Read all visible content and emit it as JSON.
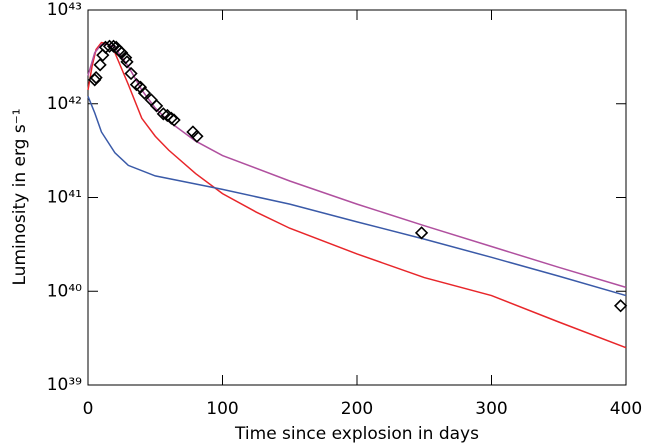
{
  "chart_data": {
    "type": "line",
    "xlabel": "Time since explosion in days",
    "ylabel": "Luminosity in erg s⁻¹",
    "xlim": [
      0,
      400
    ],
    "xticks": [
      0,
      100,
      200,
      300,
      400
    ],
    "ylim": [
      1e+39,
      1e+43
    ],
    "ylog": true,
    "yticks": [
      {
        "value": 1e+39,
        "label": "10³⁹"
      },
      {
        "value": 1e+40,
        "label": "10⁴⁰"
      },
      {
        "value": 1e+41,
        "label": "10⁴¹"
      },
      {
        "value": 1e+42,
        "label": "10⁴²"
      },
      {
        "value": 1e+43,
        "label": "10⁴³"
      }
    ],
    "series": [
      {
        "color": "#e8262a",
        "marker": "none",
        "x": [
          0,
          3,
          6,
          10,
          14,
          20,
          30,
          40,
          50,
          60,
          80,
          100,
          125,
          150,
          200,
          250,
          300,
          350,
          400
        ],
        "values": [
          1.4e+42,
          2.5e+42,
          3.8e+42,
          4.5e+42,
          4.4e+42,
          3.5e+42,
          1.6e+42,
          7e+41,
          4.5e+41,
          3.2e+41,
          1.8e+41,
          1.1e+41,
          7e+40,
          4.7e+40,
          2.5e+40,
          1.4e+40,
          9e+39,
          4.7e+39,
          2.5e+39
        ]
      },
      {
        "color": "#3a5aa8",
        "marker": "none",
        "x": [
          0,
          5,
          10,
          20,
          30,
          50,
          100,
          150,
          200,
          250,
          300,
          350,
          400
        ],
        "values": [
          1.2e+42,
          8e+41,
          5e+41,
          3e+41,
          2.2e+41,
          1.7e+41,
          1.22e+41,
          8.5e+40,
          5.5e+40,
          3.6e+40,
          2.3e+40,
          1.45e+40,
          9e+39
        ]
      },
      {
        "color": "#b0509f",
        "marker": "none",
        "x": [
          0,
          5,
          10,
          15,
          20,
          30,
          40,
          50,
          60,
          80,
          100,
          150,
          200,
          250,
          300,
          350,
          400
        ],
        "values": [
          2e+42,
          3.5e+42,
          4.3e+42,
          4.3e+42,
          4e+42,
          2.5e+42,
          1.4e+42,
          9e+41,
          6.5e+41,
          4e+41,
          2.8e+41,
          1.5e+41,
          8.5e+40,
          5e+40,
          3e+40,
          1.8e+40,
          1.1e+40
        ]
      },
      {
        "color": "#000000",
        "marker": "diamond",
        "x": [
          6,
          5,
          9,
          11,
          13,
          16,
          19,
          21,
          23,
          25,
          28,
          29,
          32,
          36,
          39,
          42,
          47,
          51,
          56,
          59,
          62,
          64,
          78,
          81,
          248,
          396
        ],
        "values": [
          1.9e+42,
          1.8e+42,
          2.6e+42,
          3.3e+42,
          4e+42,
          4.1e+42,
          4.1e+42,
          4e+42,
          3.7e+42,
          3.5e+42,
          3.1e+42,
          2.8e+42,
          2.1e+42,
          1.6e+42,
          1.5e+42,
          1.3e+42,
          1.1e+42,
          9.5e+41,
          7.8e+41,
          7.5e+41,
          7e+41,
          6.7e+41,
          5e+41,
          4.5e+41,
          4.2e+40,
          7e+39
        ]
      }
    ]
  }
}
